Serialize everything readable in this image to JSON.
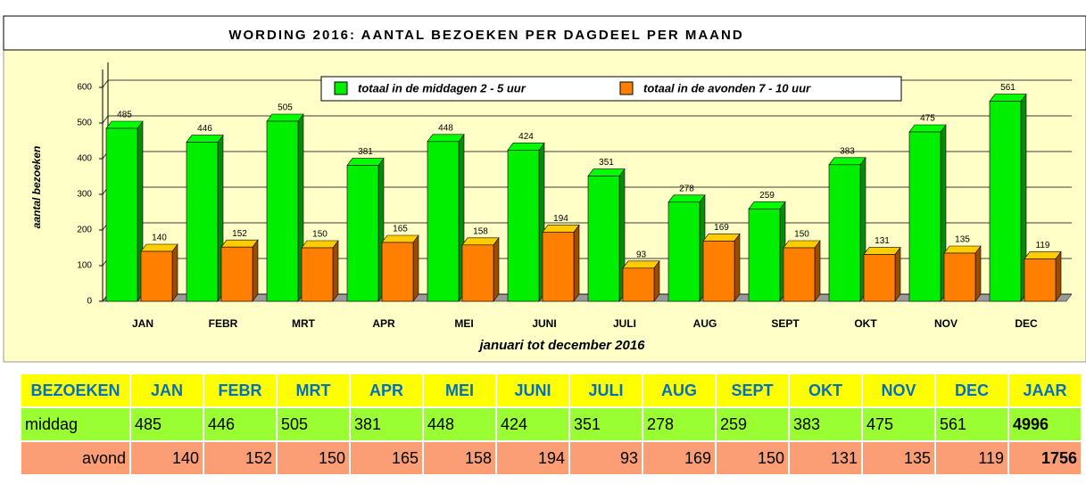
{
  "chart_data": {
    "type": "bar",
    "title": "WORDING 2016: AANTAL BEZOEKEN PER DAGDEEL PER MAAND",
    "ylabel": "aantal bezoeken",
    "xlabel": "januari tot december 2016",
    "categories": [
      "JAN",
      "FEBR",
      "MRT",
      "APR",
      "MEI",
      "JUNI",
      "JULI",
      "AUG",
      "SEPT",
      "OKT",
      "NOV",
      "DEC"
    ],
    "series": [
      {
        "name": "totaal in de middagen 2 - 5 uur",
        "color": "#00ee00",
        "values": [
          485,
          446,
          505,
          381,
          448,
          424,
          351,
          278,
          259,
          383,
          475,
          561
        ]
      },
      {
        "name": "totaal in de avonden 7 - 10 uur",
        "color": "#ff8000",
        "values": [
          140,
          152,
          150,
          165,
          158,
          194,
          93,
          169,
          150,
          131,
          135,
          119
        ]
      }
    ],
    "ylim": [
      0,
      670
    ],
    "yticks": [
      0,
      100,
      200,
      300,
      400,
      500,
      600
    ],
    "grid": true,
    "legend": "top"
  },
  "table": {
    "header": [
      "BEZOEKEN",
      "JAN",
      "FEBR",
      "MRT",
      "APR",
      "MEI",
      "JUNI",
      "JULI",
      "AUG",
      "SEPT",
      "OKT",
      "NOV",
      "DEC",
      "JAAR"
    ],
    "rows": [
      [
        "middag",
        "485",
        "446",
        "505",
        "381",
        "448",
        "424",
        "351",
        "278",
        "259",
        "383",
        "475",
        "561",
        "4996"
      ],
      [
        "avond",
        "140",
        "152",
        "150",
        "165",
        "158",
        "194",
        "93",
        "169",
        "150",
        "131",
        "135",
        "119",
        "1756"
      ]
    ]
  }
}
